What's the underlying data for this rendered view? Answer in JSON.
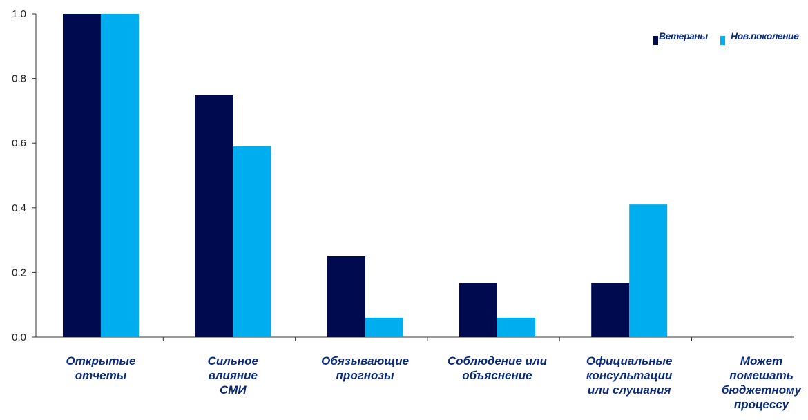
{
  "chart_data": {
    "type": "bar",
    "title": "",
    "xlabel": "",
    "ylabel": "",
    "ylim": [
      0,
      1.0
    ],
    "yticks": [
      "0.0",
      "0.2",
      "0.4",
      "0.6",
      "0.8",
      "1.0"
    ],
    "categories": [
      [
        "Открытые",
        "отчеты"
      ],
      [
        "Сильное",
        "влияние",
        "СМИ"
      ],
      [
        "Обязывающие",
        "прогнозы"
      ],
      [
        "Соблюдение или",
        "объяснение"
      ],
      [
        "Официальные",
        "консультации",
        "или слушания"
      ],
      [
        "Может",
        "помешать",
        "бюджетному",
        "процессу"
      ]
    ],
    "series": [
      {
        "name": "Ветераны",
        "color": "#000a4f",
        "values": [
          1.0,
          0.75,
          0.25,
          0.167,
          0.167,
          0.0
        ]
      },
      {
        "name": "Нов.поколение",
        "color": "#00aeef",
        "values": [
          1.0,
          0.59,
          0.06,
          0.06,
          0.41,
          0.0
        ]
      }
    ],
    "grid": false,
    "legend_position": "top-right",
    "colors": {
      "axis": "#333333",
      "category_text": "#0a2a7a"
    }
  }
}
